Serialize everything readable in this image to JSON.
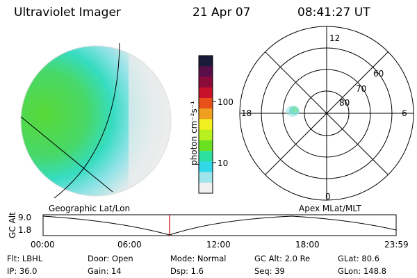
{
  "header": {
    "instrument": "Ultraviolet Imager",
    "date": "21 Apr 07",
    "time": "08:41:27 UT"
  },
  "colorbar": {
    "unit_label": "photon cm⁻²s⁻¹",
    "ticks": [
      "100",
      "10"
    ],
    "colors": [
      "#1a1a3a",
      "#5a0f4a",
      "#8a0a3a",
      "#c8102a",
      "#e8501a",
      "#f0a020",
      "#f2f020",
      "#b8f020",
      "#6ae020",
      "#2ee0a0",
      "#30d8e8",
      "#a0e4ec",
      "#f0f0f0"
    ]
  },
  "polar_plot": {
    "mlt_labels": [
      "12",
      "18",
      "6",
      "0"
    ],
    "mlat_labels": [
      "60",
      "70",
      "80"
    ]
  },
  "timeline": {
    "left_label": "Geographic Lat/Lon",
    "right_label": "Apex MLat/MLT",
    "axis_title": "GC Alt",
    "y_ticks": [
      "9.0",
      "1.8"
    ],
    "x_ticks": [
      "00:00",
      "06:00",
      "12:00",
      "18:00",
      "23:59"
    ],
    "marker_color": "#cc0000"
  },
  "status": {
    "flt": "Flt: LBHL",
    "door": "Door: Open",
    "mode": "Mode: Normal",
    "gcalt": "GC Alt: 2.0 Re",
    "glat": "GLat:  80.6",
    "ip": "IP: 36.0",
    "gain": "Gain: 14",
    "dsp": "Dsp:      1.6",
    "seq": "Seq: 39",
    "glon": "GLon: 148.8"
  }
}
